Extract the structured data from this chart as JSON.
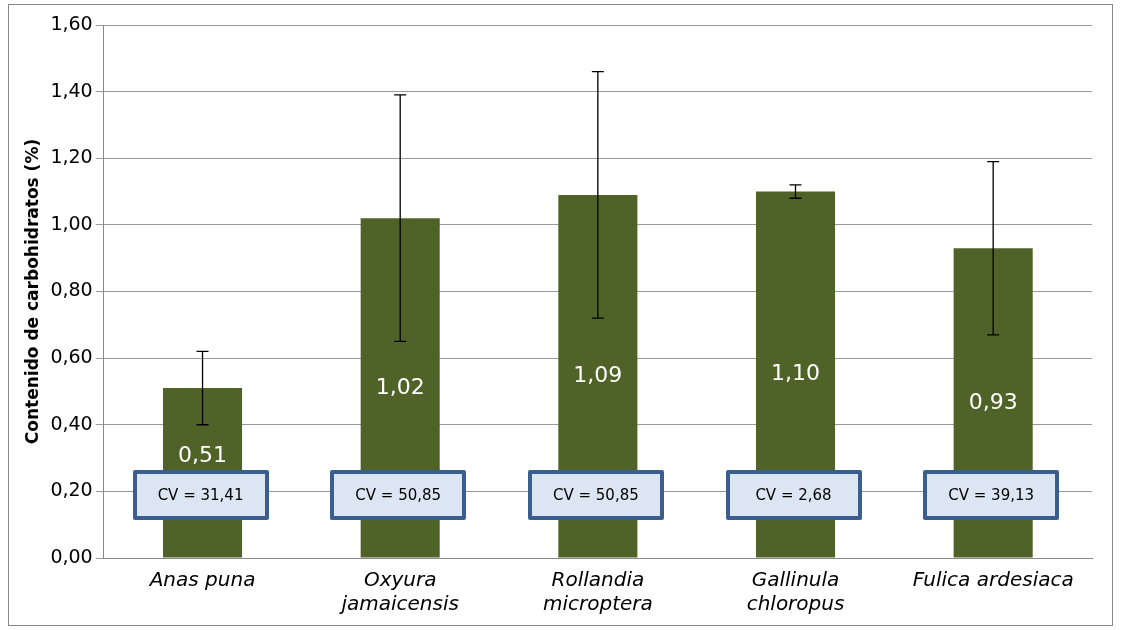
{
  "chart_data": {
    "type": "bar",
    "ylabel": "Contenido de carbohidratos (%)",
    "categories": [
      "Anas puna",
      "Oxyura\njamaicensis",
      "Rollandia\nmicroptera",
      "Gallinula\nchloropus",
      "Fulica ardesiaca"
    ],
    "values": [
      0.51,
      1.02,
      1.09,
      1.1,
      0.93
    ],
    "errors": [
      0.11,
      0.37,
      0.37,
      0.02,
      0.26
    ],
    "value_labels": [
      "0,51",
      "1,02",
      "1,09",
      "1,10",
      "0,93"
    ],
    "color": "#4f6228",
    "ylim": [
      0,
      1.6
    ],
    "yticks": [
      {
        "value": 0,
        "label": "0,00"
      },
      {
        "value": 0.2,
        "label": "0,20"
      },
      {
        "value": 0.4,
        "label": "0,40"
      },
      {
        "value": 0.6,
        "label": "0,60"
      },
      {
        "value": 0.8,
        "label": "0,80"
      },
      {
        "value": 1.0,
        "label": "1,00"
      },
      {
        "value": 1.2,
        "label": "1,20"
      },
      {
        "value": 1.4,
        "label": "1,40"
      },
      {
        "value": 1.6,
        "label": "1,60"
      }
    ],
    "grid": "y",
    "legend": false,
    "annotations": [
      "CV = 31,41",
      "CV = 50,85",
      "CV = 50,85",
      "CV = 2,68",
      "CV = 39,13"
    ]
  }
}
